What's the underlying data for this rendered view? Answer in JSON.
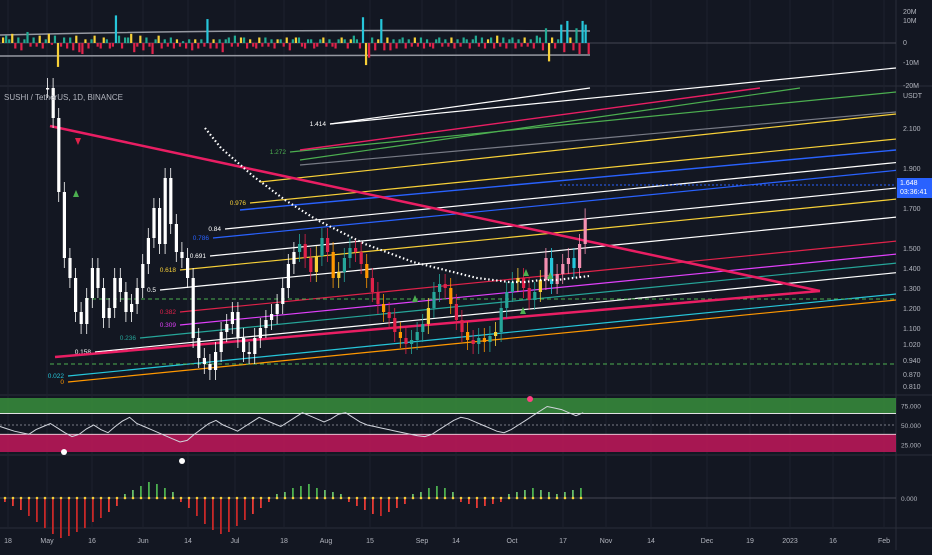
{
  "app": {
    "symbol_title": "SUSHI / TetherUS, 1D, BINANCE",
    "currency": "USDT",
    "last_price": "1.648",
    "countdown": "03:36:41"
  },
  "colors": {
    "background": "#131722",
    "grid": "#2a2e39",
    "bull": "#ffffff",
    "bear": "#ffffff",
    "trend_pink": "#e91e63",
    "wma_dots": "#ffffff",
    "price_badge": "#2962ff"
  },
  "chart_data": [
    {
      "id": "volume_pane",
      "type": "bar",
      "ylabels": [
        "20M",
        "10M",
        "0",
        "-10M",
        "-20M"
      ],
      "ylim": [
        -20,
        20
      ],
      "unit": "M",
      "values": [
        3,
        4,
        2,
        5,
        -3,
        3,
        -4,
        2,
        6,
        -2,
        3,
        -2,
        4,
        -3,
        2,
        5,
        -1,
        4,
        -13,
        -2,
        3,
        -3,
        3,
        -4,
        4,
        -5,
        -6,
        2,
        -3,
        2,
        4,
        -2,
        -3,
        3,
        2,
        -3,
        -2,
        15,
        4,
        -3,
        3,
        3,
        5,
        -5,
        -2,
        4,
        -4,
        3,
        -2,
        -6,
        2,
        4,
        -3,
        2,
        -2,
        3,
        -3,
        2,
        -2,
        1,
        -3,
        2,
        -4,
        2,
        -3,
        2,
        -2,
        13,
        -3,
        2,
        -3,
        2,
        -5,
        2,
        3,
        -2,
        4,
        -2,
        3,
        3,
        -3,
        2,
        -2,
        -3,
        3,
        -2,
        3,
        -2,
        2,
        -3,
        2,
        2,
        -2,
        3,
        -4,
        2,
        3,
        3,
        -2,
        -3,
        2,
        2,
        -3,
        -2,
        2,
        3,
        -2,
        2,
        -2,
        -3,
        2,
        3,
        2,
        -3,
        2,
        4,
        2,
        -3,
        14,
        -12,
        -8,
        3,
        -4,
        2,
        13,
        -4,
        3,
        -4,
        2,
        -3,
        2,
        3,
        -3,
        2,
        -2,
        3,
        -2,
        3,
        -3,
        2,
        -2,
        -3,
        2,
        3,
        -2,
        2,
        -2,
        3,
        -3,
        2,
        -2,
        3,
        2,
        -3,
        2,
        4,
        -2,
        3,
        -3,
        2,
        3,
        -3,
        4,
        -2,
        3,
        -3,
        2,
        3,
        -3,
        2,
        -2,
        3,
        -2,
        2,
        -3,
        4,
        3,
        -4,
        8,
        -10,
        3,
        -3,
        2,
        10,
        -5,
        12,
        3,
        -4,
        8,
        -6,
        12,
        10,
        -6,
        13
      ]
    },
    {
      "id": "price_pane",
      "type": "line",
      "ylabels": [
        "2.100",
        "1.900",
        "1.700",
        "1.500",
        "1.400",
        "1.300",
        "1.200",
        "1.100",
        "1.020",
        "0.940",
        "0.870",
        "0.810"
      ],
      "ylim": [
        0.79,
        2.2
      ],
      "xlabels": [
        "18",
        "May",
        "16",
        "Jun",
        "14",
        "Jul",
        "18",
        "Aug",
        "15",
        "Sep",
        "14",
        "Oct",
        "17",
        "Nov",
        "14",
        "Dec",
        "19",
        "2023",
        "16",
        "Feb"
      ],
      "series": [
        {
          "values": [
            2.3,
            2.15,
            1.78,
            1.45,
            1.35,
            1.18,
            1.12,
            1.25,
            1.4,
            1.3,
            1.15,
            1.2,
            1.35,
            1.28,
            1.18,
            1.22,
            1.3,
            1.42,
            1.55,
            1.7,
            1.52,
            1.85,
            1.62,
            1.48,
            1.45,
            1.35,
            1.05,
            0.95,
            0.92,
            0.89,
            0.98,
            1.08,
            1.12,
            1.18,
            1.05,
            0.98,
            0.97,
            1.05,
            1.1,
            1.14,
            1.17,
            1.22,
            1.3,
            1.42,
            1.48,
            1.52,
            1.45,
            1.38,
            1.46,
            1.55,
            1.48,
            1.35,
            1.38,
            1.45,
            1.5,
            1.48,
            1.42,
            1.35,
            1.28,
            1.22,
            1.18,
            1.15,
            1.08,
            1.05,
            1.02,
            1.04,
            1.08,
            1.12,
            1.2,
            1.28,
            1.32,
            1.3,
            1.22,
            1.14,
            1.08,
            1.04,
            1.02,
            1.05,
            1.03,
            1.06,
            1.08,
            1.2,
            1.28,
            1.33,
            1.35,
            1.3,
            1.24,
            1.28,
            1.34,
            1.45,
            1.32,
            1.37,
            1.42,
            1.45,
            1.4,
            1.52,
            1.648
          ]
        },
        {
          "values": [
            2.1,
            2.0,
            1.93,
            1.86,
            1.8,
            1.74,
            1.69,
            1.64,
            1.6,
            1.56,
            1.52,
            1.49,
            1.46,
            1.43,
            1.41,
            1.39,
            1.37,
            1.35,
            1.34,
            1.33,
            1.33,
            1.34,
            1.34,
            1.35,
            1.36
          ]
        }
      ],
      "annotations": [
        "1.414",
        "1.272",
        "0.976",
        "0.84",
        "0.786",
        "0.691",
        "0.618",
        "0.5",
        "0.382",
        "0.309",
        "0.236",
        "0.158",
        "0.022",
        "0"
      ]
    },
    {
      "id": "rsi_pane",
      "type": "line",
      "ylabels": [
        "75.000",
        "50.000",
        "25.000"
      ],
      "ylim": [
        15,
        85
      ],
      "values": [
        48,
        45,
        42,
        40,
        38,
        44,
        48,
        52,
        46,
        40,
        35,
        38,
        45,
        50,
        44,
        40,
        48,
        55,
        60,
        52,
        48,
        44,
        40,
        36,
        32,
        28,
        30,
        38,
        45,
        52,
        56,
        50,
        46,
        42,
        48,
        54,
        60,
        56,
        52,
        48,
        54,
        60,
        66,
        62,
        58,
        54,
        58,
        64,
        66,
        60,
        54,
        50,
        48,
        46,
        44,
        42,
        40,
        38,
        36,
        35,
        38,
        44,
        50,
        56,
        60,
        58,
        54,
        50,
        46,
        42,
        40,
        44,
        50,
        56,
        62,
        68,
        74,
        72,
        70,
        66,
        62,
        66,
        70
      ]
    },
    {
      "id": "momentum_pane",
      "type": "bar",
      "ylabels": [
        "0.000"
      ],
      "values": [
        -0.02,
        -0.04,
        -0.06,
        -0.09,
        -0.12,
        -0.15,
        -0.18,
        -0.2,
        -0.19,
        -0.17,
        -0.15,
        -0.12,
        -0.1,
        -0.07,
        -0.04,
        0.02,
        0.04,
        0.06,
        0.08,
        0.07,
        0.05,
        0.03,
        -0.02,
        -0.05,
        -0.09,
        -0.13,
        -0.16,
        -0.18,
        -0.17,
        -0.14,
        -0.11,
        -0.08,
        -0.05,
        -0.02,
        0.02,
        0.03,
        0.05,
        0.06,
        0.07,
        0.05,
        0.04,
        0.03,
        0.02,
        -0.02,
        -0.04,
        -0.06,
        -0.08,
        -0.09,
        -0.07,
        -0.05,
        -0.03,
        0.02,
        0.03,
        0.05,
        0.06,
        0.05,
        0.03,
        -0.02,
        -0.03,
        -0.05,
        -0.04,
        -0.03,
        -0.02,
        0.02,
        0.03,
        0.04,
        0.05,
        0.04,
        0.03,
        0.02,
        0.03,
        0.04,
        0.05
      ]
    }
  ]
}
